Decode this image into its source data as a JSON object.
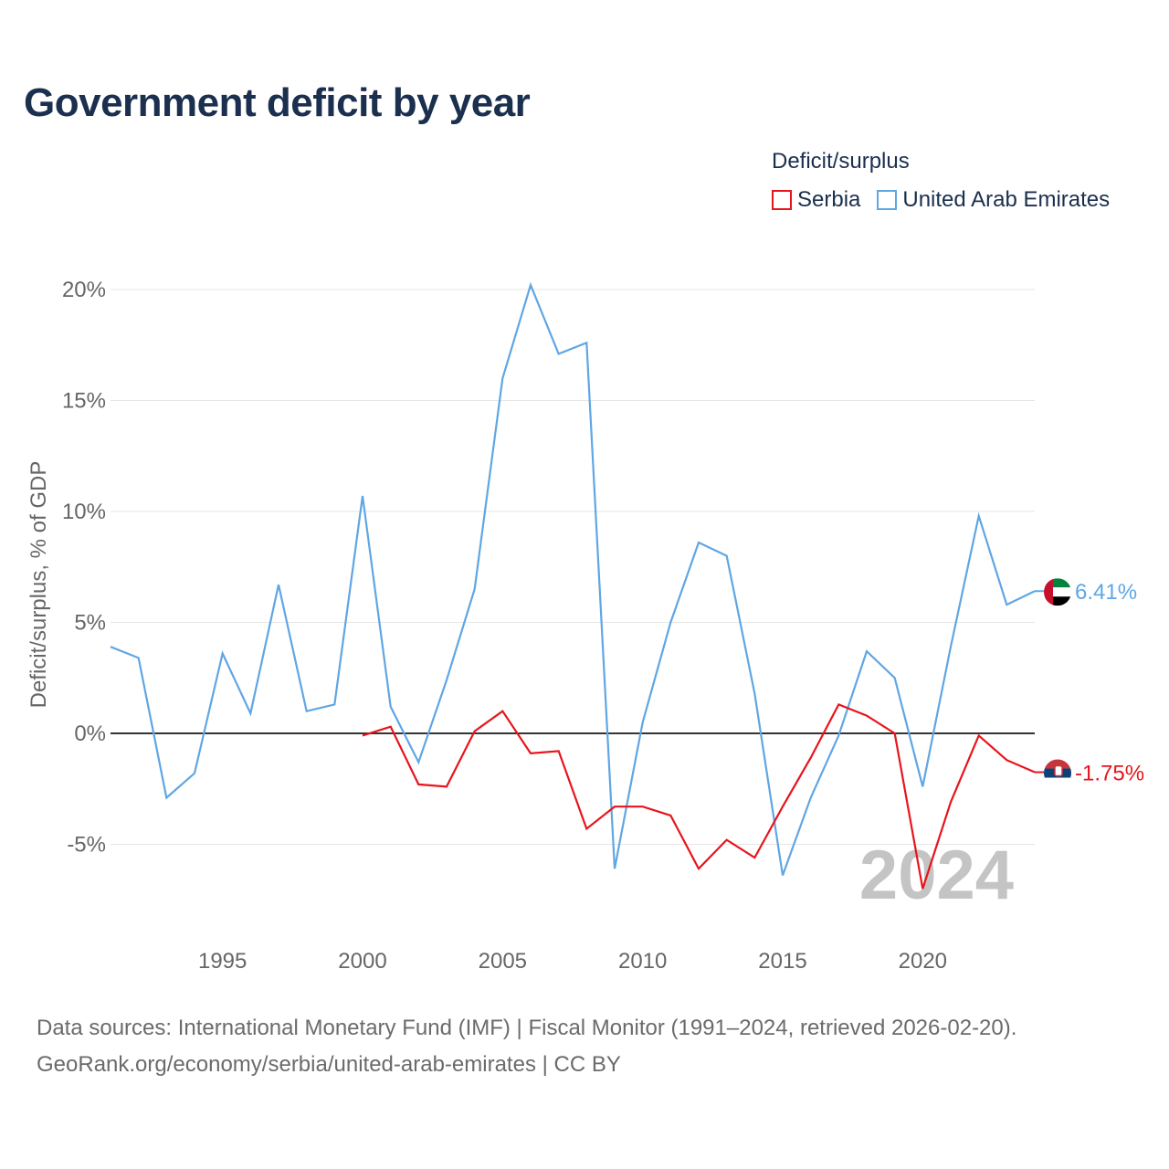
{
  "title": "Government deficit by year",
  "legend": {
    "title": "Deficit/surplus",
    "items": [
      {
        "label": "Serbia",
        "color": "#e8141c"
      },
      {
        "label": "United Arab Emirates",
        "color": "#5fa6e4"
      }
    ]
  },
  "source": {
    "line1": "Data sources: International Monetary Fund (IMF) | Fiscal Monitor (1991–2024, retrieved 2026-02-20).",
    "line2": "GeoRank.org/economy/serbia/united-arab-emirates | CC BY"
  },
  "chart_data": {
    "type": "line",
    "title": "Government deficit by year",
    "ylabel": "Deficit/surplus, % of GDP",
    "xlabel": "",
    "year_label": "2024",
    "xlim": [
      1991,
      2024
    ],
    "ylim": [
      -8.5,
      20.5
    ],
    "yticks": [
      -5,
      0,
      5,
      10,
      15,
      20
    ],
    "ytick_labels": [
      "-5%",
      "0%",
      "5%",
      "10%",
      "15%",
      "20%"
    ],
    "xticks": [
      1995,
      2000,
      2005,
      2010,
      2015,
      2020
    ],
    "xtick_labels": [
      "1995",
      "2000",
      "2005",
      "2010",
      "2015",
      "2020"
    ],
    "grid": true,
    "series": [
      {
        "name": "United Arab Emirates",
        "color": "#5fa6e4",
        "end_label": "6.41%",
        "flag": "uae",
        "x": [
          1991,
          1992,
          1993,
          1994,
          1995,
          1996,
          1997,
          1998,
          1999,
          2000,
          2001,
          2002,
          2003,
          2004,
          2005,
          2006,
          2007,
          2008,
          2009,
          2010,
          2011,
          2012,
          2013,
          2014,
          2015,
          2016,
          2017,
          2018,
          2019,
          2020,
          2021,
          2022,
          2023,
          2024
        ],
        "values": [
          3.9,
          3.4,
          -2.9,
          -1.8,
          3.6,
          0.9,
          6.7,
          1.0,
          1.3,
          10.7,
          1.2,
          -1.3,
          2.4,
          6.5,
          16.0,
          20.2,
          17.1,
          17.6,
          -6.1,
          0.5,
          5.0,
          8.6,
          8.0,
          1.8,
          -6.4,
          -2.9,
          -0.1,
          3.7,
          2.5,
          -2.4,
          3.9,
          9.8,
          5.8,
          6.41
        ]
      },
      {
        "name": "Serbia",
        "color": "#e8141c",
        "end_label": "-1.75%",
        "flag": "serbia",
        "x": [
          2000,
          2001,
          2002,
          2003,
          2004,
          2005,
          2006,
          2007,
          2008,
          2009,
          2010,
          2011,
          2012,
          2013,
          2014,
          2015,
          2016,
          2017,
          2018,
          2019,
          2020,
          2021,
          2022,
          2023,
          2024
        ],
        "values": [
          -0.1,
          0.3,
          -2.3,
          -2.4,
          0.1,
          1.0,
          -0.9,
          -0.8,
          -4.3,
          -3.3,
          -3.3,
          -3.7,
          -6.1,
          -4.8,
          -5.6,
          -3.3,
          -1.1,
          1.3,
          0.8,
          0.0,
          -7.0,
          -3.1,
          -0.1,
          -1.2,
          -1.75
        ]
      }
    ]
  }
}
